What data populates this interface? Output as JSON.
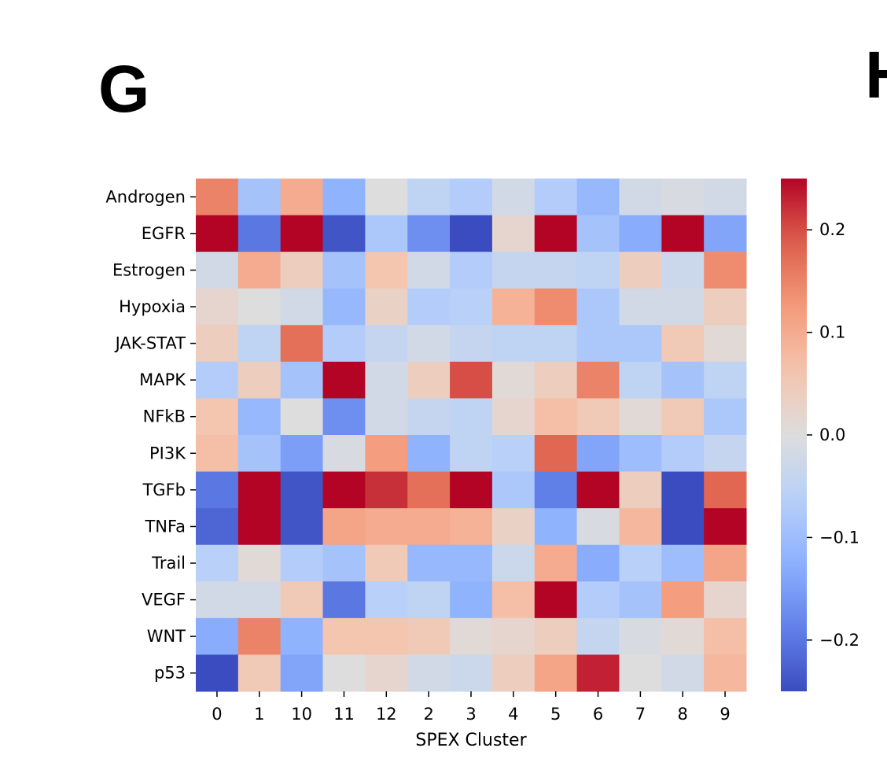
{
  "panel_labels": [
    "G",
    "H"
  ],
  "chart_data": {
    "type": "heatmap",
    "title": "",
    "xlabel": "SPEX Cluster",
    "ylabel": "",
    "colormap": "coolwarm",
    "vmin": -0.25,
    "vmax": 0.25,
    "colorbar_ticks": [
      0.2,
      0.1,
      0.0,
      -0.1,
      -0.2
    ],
    "colorbar_tick_labels": [
      "0.2",
      "0.1",
      "0.0",
      "−0.1",
      "−0.2"
    ],
    "x_categories": [
      "0",
      "1",
      "10",
      "11",
      "12",
      "2",
      "3",
      "4",
      "5",
      "6",
      "7",
      "8",
      "9"
    ],
    "y_categories": [
      "Androgen",
      "EGFR",
      "Estrogen",
      "Hypoxia",
      "JAK-STAT",
      "MAPK",
      "NFkB",
      "PI3K",
      "TGFb",
      "TNFa",
      "Trail",
      "VEGF",
      "WNT",
      "p53"
    ],
    "values": [
      [
        0.15,
        -0.09,
        0.1,
        -0.12,
        0.0,
        -0.05,
        -0.07,
        -0.02,
        -0.07,
        -0.11,
        -0.02,
        -0.01,
        -0.02
      ],
      [
        0.25,
        -0.2,
        0.25,
        -0.24,
        -0.08,
        -0.17,
        -0.25,
        0.02,
        0.25,
        -0.09,
        -0.13,
        0.25,
        -0.14
      ],
      [
        -0.02,
        0.1,
        0.04,
        -0.09,
        0.06,
        -0.02,
        -0.07,
        -0.04,
        -0.04,
        -0.05,
        0.04,
        -0.03,
        0.14
      ],
      [
        0.02,
        0.0,
        -0.02,
        -0.11,
        0.03,
        -0.07,
        -0.06,
        0.09,
        0.14,
        -0.08,
        -0.02,
        -0.02,
        0.04
      ],
      [
        0.04,
        -0.05,
        0.17,
        -0.07,
        -0.04,
        -0.02,
        -0.04,
        -0.05,
        -0.05,
        -0.08,
        -0.08,
        0.05,
        0.01
      ],
      [
        -0.07,
        0.04,
        -0.09,
        0.25,
        -0.02,
        0.04,
        0.2,
        0.01,
        0.04,
        0.15,
        -0.05,
        -0.09,
        -0.05
      ],
      [
        0.06,
        -0.11,
        0.0,
        -0.17,
        -0.02,
        -0.04,
        -0.05,
        0.02,
        0.07,
        0.05,
        0.01,
        0.05,
        -0.08
      ],
      [
        0.07,
        -0.09,
        -0.15,
        -0.01,
        0.12,
        -0.12,
        -0.05,
        -0.06,
        0.18,
        -0.14,
        -0.1,
        -0.07,
        -0.04
      ],
      [
        -0.2,
        0.25,
        -0.24,
        0.25,
        0.22,
        0.17,
        0.25,
        -0.08,
        -0.19,
        0.25,
        0.04,
        -0.25,
        0.18
      ],
      [
        -0.22,
        0.25,
        -0.24,
        0.11,
        0.1,
        0.1,
        0.09,
        0.03,
        -0.12,
        -0.01,
        0.08,
        -0.25,
        0.25
      ],
      [
        -0.06,
        0.01,
        -0.07,
        -0.09,
        0.05,
        -0.11,
        -0.11,
        -0.03,
        0.1,
        -0.13,
        -0.06,
        -0.1,
        0.11
      ],
      [
        -0.02,
        -0.02,
        0.05,
        -0.2,
        -0.06,
        -0.05,
        -0.12,
        0.07,
        0.25,
        -0.07,
        -0.09,
        0.12,
        0.02
      ],
      [
        -0.13,
        0.15,
        -0.12,
        0.06,
        0.06,
        0.05,
        0.01,
        0.02,
        0.04,
        -0.04,
        -0.01,
        0.01,
        0.07
      ],
      [
        -0.25,
        0.05,
        -0.14,
        0.0,
        0.02,
        -0.02,
        -0.03,
        0.04,
        0.11,
        0.23,
        0.0,
        -0.02,
        0.08
      ]
    ],
    "grid": false,
    "legend": "colorbar-right"
  }
}
